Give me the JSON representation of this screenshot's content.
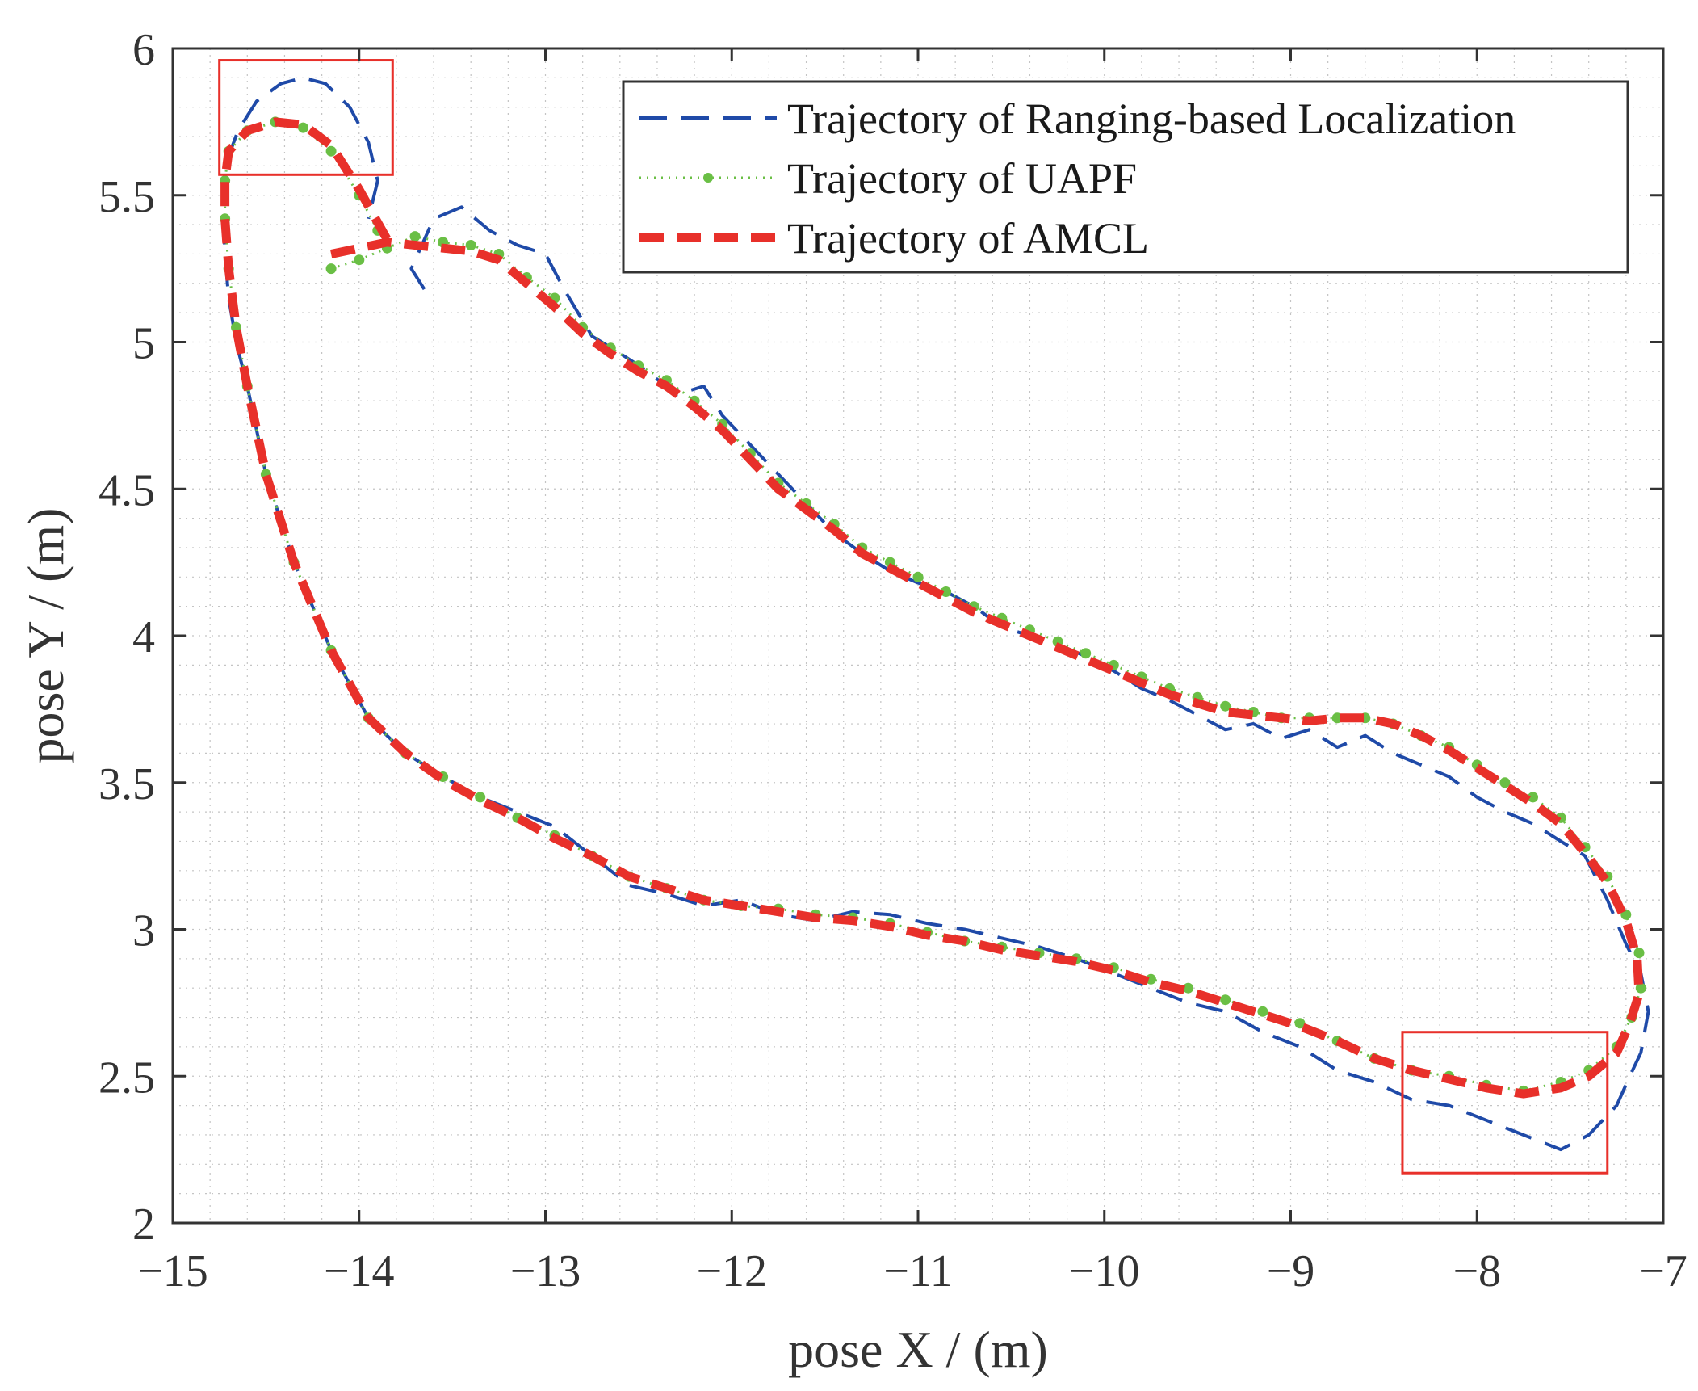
{
  "chart_data": {
    "type": "line",
    "title": "",
    "xlabel": "pose X / (m)",
    "ylabel": "pose Y / (m)",
    "xlim": [
      -15,
      -7
    ],
    "ylim": [
      2,
      6
    ],
    "x_ticks": [
      -15,
      -14,
      -13,
      -12,
      -11,
      -10,
      -9,
      -8,
      -7
    ],
    "x_tick_labels": [
      "−15",
      "−14",
      "−13",
      "−12",
      "−11",
      "−10",
      "−9",
      "−8",
      "−7"
    ],
    "y_ticks": [
      2,
      2.5,
      3,
      3.5,
      4,
      4.5,
      5,
      5.5,
      6
    ],
    "y_tick_labels": [
      "2",
      "2.5",
      "3",
      "3.5",
      "4",
      "4.5",
      "5",
      "5.5",
      "6"
    ],
    "grid": "minor dotted",
    "legend_position": "top-right",
    "series": [
      {
        "name": "Trajectory of Ranging-based Localization",
        "color": "#1f4aa8",
        "style": "dashed",
        "x": [
          -13.65,
          -13.72,
          -13.6,
          -13.45,
          -13.3,
          -13.15,
          -13.0,
          -12.9,
          -12.75,
          -12.62,
          -12.45,
          -12.3,
          -12.15,
          -12.05,
          -11.9,
          -11.75,
          -11.6,
          -11.45,
          -11.3,
          -11.15,
          -11.0,
          -10.85,
          -10.7,
          -10.55,
          -10.4,
          -10.25,
          -10.1,
          -9.95,
          -9.8,
          -9.65,
          -9.5,
          -9.35,
          -9.2,
          -9.05,
          -8.9,
          -8.75,
          -8.6,
          -8.45,
          -8.3,
          -8.15,
          -8.0,
          -7.85,
          -7.7,
          -7.55,
          -7.42,
          -7.3,
          -7.2,
          -7.12,
          -7.08,
          -7.12,
          -7.18,
          -7.25,
          -7.4,
          -7.55,
          -7.75,
          -7.95,
          -8.15,
          -8.35,
          -8.55,
          -8.75,
          -8.95,
          -9.15,
          -9.35,
          -9.55,
          -9.75,
          -9.95,
          -10.15,
          -10.35,
          -10.55,
          -10.75,
          -10.95,
          -11.15,
          -11.35,
          -11.55,
          -11.75,
          -11.95,
          -12.15,
          -12.35,
          -12.55,
          -12.75,
          -12.95,
          -13.15,
          -13.35,
          -13.55,
          -13.75,
          -13.95,
          -14.15,
          -14.35,
          -14.5,
          -14.6,
          -14.66,
          -14.7,
          -14.72,
          -14.73,
          -14.72,
          -14.65,
          -14.55,
          -14.42,
          -14.3,
          -14.18,
          -14.05,
          -13.95,
          -13.9,
          -13.95
        ],
        "y": [
          5.18,
          5.25,
          5.42,
          5.46,
          5.38,
          5.33,
          5.3,
          5.18,
          5.02,
          4.97,
          4.9,
          4.82,
          4.85,
          4.75,
          4.65,
          4.55,
          4.45,
          4.35,
          4.28,
          4.22,
          4.18,
          4.15,
          4.1,
          4.03,
          4.0,
          3.97,
          3.93,
          3.88,
          3.82,
          3.78,
          3.73,
          3.68,
          3.7,
          3.65,
          3.68,
          3.62,
          3.66,
          3.6,
          3.56,
          3.52,
          3.45,
          3.4,
          3.36,
          3.3,
          3.25,
          3.1,
          2.95,
          2.85,
          2.72,
          2.58,
          2.5,
          2.4,
          2.3,
          2.25,
          2.3,
          2.35,
          2.4,
          2.42,
          2.48,
          2.52,
          2.6,
          2.65,
          2.72,
          2.75,
          2.8,
          2.85,
          2.9,
          2.94,
          2.97,
          3.0,
          3.02,
          3.05,
          3.06,
          3.03,
          3.05,
          3.1,
          3.08,
          3.12,
          3.15,
          3.25,
          3.35,
          3.4,
          3.45,
          3.52,
          3.6,
          3.72,
          3.95,
          4.25,
          4.55,
          4.85,
          5.0,
          5.15,
          5.3,
          5.45,
          5.6,
          5.72,
          5.82,
          5.88,
          5.9,
          5.88,
          5.8,
          5.68,
          5.55,
          5.42
        ]
      },
      {
        "name": "Trajectory of UAPF",
        "color": "#6abf45",
        "style": "dotted-marker",
        "x": [
          -14.15,
          -14.0,
          -13.85,
          -13.7,
          -13.55,
          -13.4,
          -13.25,
          -13.1,
          -12.95,
          -12.8,
          -12.65,
          -12.5,
          -12.35,
          -12.2,
          -12.05,
          -11.9,
          -11.75,
          -11.6,
          -11.45,
          -11.3,
          -11.15,
          -11.0,
          -10.85,
          -10.7,
          -10.55,
          -10.4,
          -10.25,
          -10.1,
          -9.95,
          -9.8,
          -9.65,
          -9.5,
          -9.35,
          -9.2,
          -9.05,
          -8.9,
          -8.75,
          -8.6,
          -8.45,
          -8.3,
          -8.15,
          -8.0,
          -7.85,
          -7.7,
          -7.55,
          -7.42,
          -7.3,
          -7.2,
          -7.13,
          -7.12,
          -7.17,
          -7.25,
          -7.4,
          -7.55,
          -7.75,
          -7.95,
          -8.15,
          -8.35,
          -8.55,
          -8.75,
          -8.95,
          -9.15,
          -9.35,
          -9.55,
          -9.75,
          -9.95,
          -10.15,
          -10.35,
          -10.55,
          -10.75,
          -10.95,
          -11.15,
          -11.35,
          -11.55,
          -11.75,
          -11.95,
          -12.15,
          -12.35,
          -12.55,
          -12.75,
          -12.95,
          -13.15,
          -13.35,
          -13.55,
          -13.75,
          -13.95,
          -14.15,
          -14.35,
          -14.5,
          -14.6,
          -14.66,
          -14.7,
          -14.72,
          -14.72,
          -14.7,
          -14.6,
          -14.45,
          -14.3,
          -14.15,
          -14.0,
          -13.9
        ],
        "y": [
          5.25,
          5.28,
          5.32,
          5.36,
          5.34,
          5.33,
          5.3,
          5.22,
          5.15,
          5.05,
          4.98,
          4.92,
          4.87,
          4.8,
          4.72,
          4.62,
          4.52,
          4.45,
          4.38,
          4.3,
          4.25,
          4.2,
          4.15,
          4.1,
          4.06,
          4.02,
          3.98,
          3.94,
          3.9,
          3.86,
          3.82,
          3.79,
          3.76,
          3.74,
          3.72,
          3.72,
          3.72,
          3.72,
          3.7,
          3.66,
          3.62,
          3.56,
          3.5,
          3.45,
          3.38,
          3.28,
          3.18,
          3.05,
          2.92,
          2.8,
          2.7,
          2.6,
          2.52,
          2.48,
          2.45,
          2.47,
          2.5,
          2.52,
          2.56,
          2.62,
          2.68,
          2.72,
          2.76,
          2.8,
          2.83,
          2.87,
          2.9,
          2.92,
          2.94,
          2.96,
          2.99,
          3.02,
          3.04,
          3.05,
          3.07,
          3.08,
          3.1,
          3.14,
          3.18,
          3.25,
          3.32,
          3.38,
          3.45,
          3.52,
          3.6,
          3.72,
          3.95,
          4.25,
          4.55,
          4.85,
          5.05,
          5.25,
          5.42,
          5.55,
          5.65,
          5.72,
          5.75,
          5.73,
          5.65,
          5.5,
          5.38
        ]
      },
      {
        "name": "Trajectory of AMCL",
        "color": "#e8302a",
        "style": "dashed-thick",
        "x": [
          -14.15,
          -14.0,
          -13.85,
          -13.7,
          -13.55,
          -13.4,
          -13.25,
          -13.1,
          -12.95,
          -12.8,
          -12.65,
          -12.5,
          -12.35,
          -12.2,
          -12.05,
          -11.9,
          -11.75,
          -11.6,
          -11.45,
          -11.3,
          -11.15,
          -11.0,
          -10.85,
          -10.7,
          -10.55,
          -10.4,
          -10.25,
          -10.1,
          -9.95,
          -9.8,
          -9.65,
          -9.5,
          -9.35,
          -9.2,
          -9.05,
          -8.9,
          -8.75,
          -8.6,
          -8.45,
          -8.3,
          -8.15,
          -8.0,
          -7.85,
          -7.7,
          -7.55,
          -7.42,
          -7.3,
          -7.2,
          -7.14,
          -7.13,
          -7.18,
          -7.25,
          -7.4,
          -7.55,
          -7.75,
          -7.95,
          -8.15,
          -8.35,
          -8.55,
          -8.75,
          -8.95,
          -9.15,
          -9.35,
          -9.55,
          -9.75,
          -9.95,
          -10.15,
          -10.35,
          -10.55,
          -10.75,
          -10.95,
          -11.15,
          -11.35,
          -11.55,
          -11.75,
          -11.95,
          -12.15,
          -12.35,
          -12.55,
          -12.75,
          -12.95,
          -13.15,
          -13.35,
          -13.55,
          -13.75,
          -13.95,
          -14.15,
          -14.35,
          -14.5,
          -14.6,
          -14.66,
          -14.7,
          -14.72,
          -14.72,
          -14.7,
          -14.6,
          -14.45,
          -14.3,
          -14.15,
          -14.0,
          -13.85
        ],
        "y": [
          5.3,
          5.32,
          5.34,
          5.33,
          5.32,
          5.31,
          5.28,
          5.2,
          5.12,
          5.03,
          4.96,
          4.9,
          4.85,
          4.78,
          4.7,
          4.6,
          4.5,
          4.43,
          4.36,
          4.28,
          4.23,
          4.18,
          4.13,
          4.08,
          4.04,
          4.0,
          3.96,
          3.92,
          3.88,
          3.84,
          3.8,
          3.77,
          3.74,
          3.73,
          3.72,
          3.71,
          3.72,
          3.72,
          3.7,
          3.66,
          3.61,
          3.55,
          3.49,
          3.43,
          3.36,
          3.26,
          3.16,
          3.03,
          2.9,
          2.78,
          2.68,
          2.58,
          2.5,
          2.46,
          2.44,
          2.46,
          2.49,
          2.52,
          2.56,
          2.62,
          2.67,
          2.71,
          2.75,
          2.79,
          2.82,
          2.86,
          2.89,
          2.91,
          2.93,
          2.96,
          2.98,
          3.01,
          3.03,
          3.04,
          3.06,
          3.08,
          3.1,
          3.14,
          3.18,
          3.25,
          3.31,
          3.38,
          3.44,
          3.51,
          3.6,
          3.72,
          3.95,
          4.25,
          4.55,
          4.85,
          5.05,
          5.25,
          5.42,
          5.55,
          5.65,
          5.72,
          5.75,
          5.74,
          5.67,
          5.52,
          5.35
        ]
      }
    ],
    "annotations": [
      {
        "type": "box",
        "color": "#e8302a",
        "x": [
          -14.75,
          -13.82
        ],
        "y": [
          5.57,
          5.96
        ]
      },
      {
        "type": "box",
        "color": "#e8302a",
        "x": [
          -8.4,
          -7.3
        ],
        "y": [
          2.17,
          2.65
        ]
      }
    ]
  }
}
